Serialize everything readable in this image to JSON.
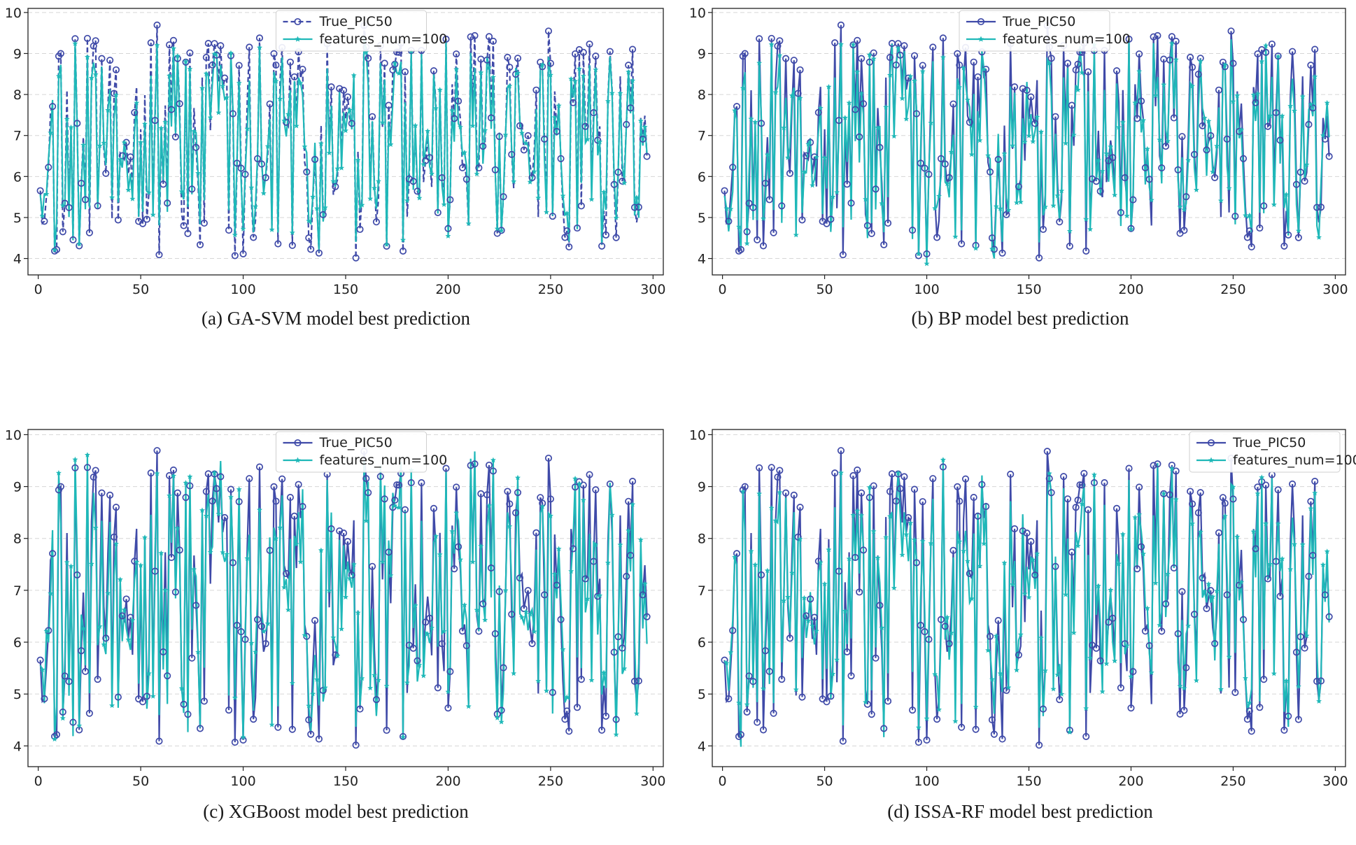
{
  "colors": {
    "true_series": "#3f4aa8",
    "pred_series": "#1fb8b8",
    "grid": "#d6d6d6",
    "axis": "#222222"
  },
  "chart_data": [
    {
      "type": "line",
      "id": "a",
      "caption": "(a) GA-SVM model best prediction",
      "xlim": [
        -5,
        305
      ],
      "ylim": [
        3.6,
        10.1
      ],
      "xticks": [
        0,
        50,
        100,
        150,
        200,
        250,
        300
      ],
      "yticks": [
        4,
        5,
        6,
        7,
        8,
        9,
        10
      ],
      "legend": {
        "position": "top-center",
        "entries": [
          "True_PIC50",
          "features_num=100"
        ]
      },
      "true_dashed": true,
      "series": [
        {
          "name": "True_PIC50",
          "seed": 11
        },
        {
          "name": "features_num=100",
          "seed": 101,
          "noise": 0.55
        }
      ]
    },
    {
      "type": "line",
      "id": "b",
      "caption": "(b) BP model best prediction",
      "xlim": [
        -5,
        305
      ],
      "ylim": [
        3.6,
        10.1
      ],
      "xticks": [
        0,
        50,
        100,
        150,
        200,
        250,
        300
      ],
      "yticks": [
        4,
        5,
        6,
        7,
        8,
        9,
        10
      ],
      "legend": {
        "position": "top-center",
        "entries": [
          "True_PIC50",
          "features_num=100"
        ]
      },
      "true_dashed": false,
      "series": [
        {
          "name": "True_PIC50",
          "seed": 11
        },
        {
          "name": "features_num=100",
          "seed": 202,
          "noise": 0.75
        }
      ]
    },
    {
      "type": "line",
      "id": "c",
      "caption": "(c) XGBoost model best prediction",
      "xlim": [
        -5,
        305
      ],
      "ylim": [
        3.6,
        10.1
      ],
      "xticks": [
        0,
        50,
        100,
        150,
        200,
        250,
        300
      ],
      "yticks": [
        4,
        5,
        6,
        7,
        8,
        9,
        10
      ],
      "legend": {
        "position": "top-center",
        "entries": [
          "True_PIC50",
          "features_num=100"
        ]
      },
      "true_dashed": false,
      "series": [
        {
          "name": "True_PIC50",
          "seed": 11
        },
        {
          "name": "features_num=100",
          "seed": 303,
          "noise": 0.85
        }
      ]
    },
    {
      "type": "line",
      "id": "d",
      "caption": "(d) ISSA-RF model best prediction",
      "xlim": [
        -5,
        305
      ],
      "ylim": [
        3.6,
        10.1
      ],
      "xticks": [
        0,
        50,
        100,
        150,
        200,
        250,
        300
      ],
      "yticks": [
        4,
        5,
        6,
        7,
        8,
        9,
        10
      ],
      "legend": {
        "position": "top-right",
        "entries": [
          "True_PIC50",
          "features_num=100"
        ]
      },
      "true_dashed": false,
      "series": [
        {
          "name": "True_PIC50",
          "seed": 11
        },
        {
          "name": "features_num=100",
          "seed": 404,
          "noise": 0.7
        }
      ]
    }
  ],
  "series_info": {
    "points": 297,
    "x_start": 1,
    "value_min": 4.0,
    "value_max": 10.0
  }
}
